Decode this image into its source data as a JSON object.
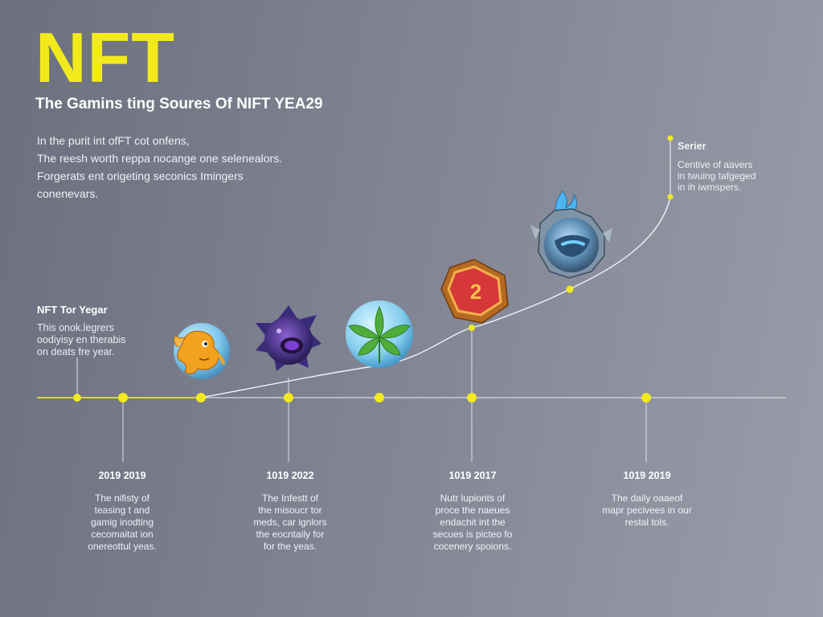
{
  "title": "NFT",
  "subtitle": "The Gamins ting Soures Of NIFT YEA29",
  "intro": [
    "In the purit int ofFT cot onfens,",
    "The reesh worth reppa nocange one selenealors.",
    "Forgerats ent origeting seconics Imingers",
    "conenevars."
  ],
  "left_note": {
    "heading": "NFT Tor Yegar",
    "lines": [
      "This onok.legrers",
      "oodiyisy en therabis",
      "on deats fre year."
    ]
  },
  "right_note": {
    "heading": "Serier",
    "lines": [
      "Centive of aavers",
      "in twuing tafgeged",
      "in ih iwmspers."
    ]
  },
  "columns": [
    {
      "date": "2019 2019",
      "lines": [
        "The nifisty of",
        "teasing t and",
        "gamig inodting",
        "cecomaitat ion",
        "onereottul yeas."
      ]
    },
    {
      "date": "1019 2022",
      "lines": [
        "The Infestt of",
        "the misoucr tor",
        "meds, car ignlors",
        "the eocntaily for",
        "for the yeas."
      ]
    },
    {
      "date": "1019 2017",
      "lines": [
        "Nutr lupionts of",
        "proce the naeues",
        "endachit int the",
        "secues is picteo fo",
        "cocenery spoions."
      ]
    },
    {
      "date": "1019 2019",
      "lines": [
        "The daily oaaeof",
        "mapr pecivees in our",
        "restal tols."
      ]
    }
  ],
  "icons": [
    {
      "name": "orange-dragon-token-icon"
    },
    {
      "name": "purple-spiky-monster-icon"
    },
    {
      "name": "green-leaf-token-icon"
    },
    {
      "name": "red-number-badge-icon",
      "label": "2"
    },
    {
      "name": "blue-armored-creature-icon"
    }
  ],
  "colors": {
    "accent_yellow": "#f2ea1d",
    "axis_line": "#d8d8df",
    "curve_line": "#f4f4f6"
  }
}
